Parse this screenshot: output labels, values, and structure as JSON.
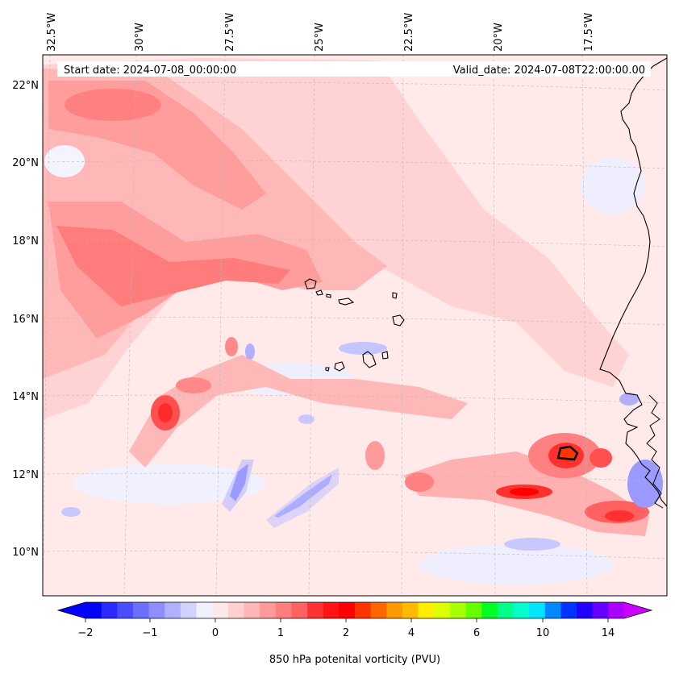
{
  "map": {
    "start_date": "Start date: 2024-07-08_00:00:00",
    "valid_date": "Valid_date: 2024-07-08T22:00:00.00",
    "longitude_labels": [
      "32.5°W",
      "30°W",
      "27.5°W",
      "25°W",
      "22.5°W",
      "20°W",
      "17.5°W"
    ],
    "latitude_labels": [
      "22°N",
      "20°N",
      "18°N",
      "16°N",
      "14°N",
      "12°N",
      "10°N"
    ],
    "gridlines": true,
    "background_field": "light pink (~0-0.2 PVU)"
  },
  "colorbar": {
    "label": "850 hPa potenital vorticity (PVU)",
    "tick_labels": [
      "−2",
      "−1",
      "0",
      "1",
      "2",
      "4",
      "6",
      "10",
      "14"
    ],
    "colors": [
      "#0000ff",
      "#2a2aff",
      "#4c4cff",
      "#6e6eff",
      "#8e8eff",
      "#b0b0ff",
      "#d2d2ff",
      "#f0f0ff",
      "#ffe8e8",
      "#ffd0d0",
      "#ffb6b6",
      "#ff9a9a",
      "#ff7e7e",
      "#ff6262",
      "#ff3232",
      "#ff1414",
      "#ff0000",
      "#ff3300",
      "#ff6600",
      "#ff9900",
      "#ffbb00",
      "#ffee00",
      "#ddff00",
      "#aaff00",
      "#66ff00",
      "#00ff22",
      "#00ff88",
      "#00ffcc",
      "#00e5ff",
      "#0088ff",
      "#0033ff",
      "#2200ff",
      "#6600ff",
      "#aa00ff"
    ],
    "extend_low_color": "#0000ff",
    "extend_high_color": "#cc00ff"
  }
}
